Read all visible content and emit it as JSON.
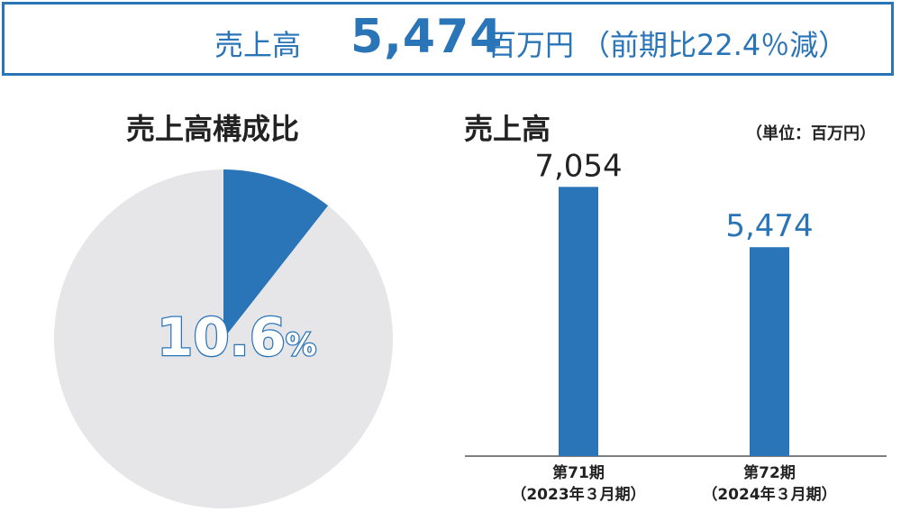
{
  "banner": {
    "label": "売上高",
    "value": "5,474",
    "unit": "百万円",
    "change": "（前期比22.4％減）"
  },
  "pie_title": "売上高構成比",
  "bar_title": "売上高",
  "bar_unit": "（単位：百万円）",
  "colors": {
    "accent": "#2a74b8",
    "pie_rest": "#e6e6e8"
  },
  "chart_data": [
    {
      "type": "pie",
      "title": "売上高構成比",
      "slices": [
        {
          "label": "10.6%",
          "value": 10.6
        },
        {
          "label": "",
          "value": 89.4
        }
      ]
    },
    {
      "type": "bar",
      "title": "売上高",
      "unit": "（単位：百万円）",
      "categories": [
        {
          "line1": "第71期",
          "line2": "（2023年３月期）"
        },
        {
          "line1": "第72期",
          "line2": "（2024年３月期）"
        }
      ],
      "values": [
        7054,
        5474
      ],
      "value_labels": [
        "7,054",
        "5,474"
      ],
      "ylim": [
        0,
        7700
      ]
    }
  ]
}
